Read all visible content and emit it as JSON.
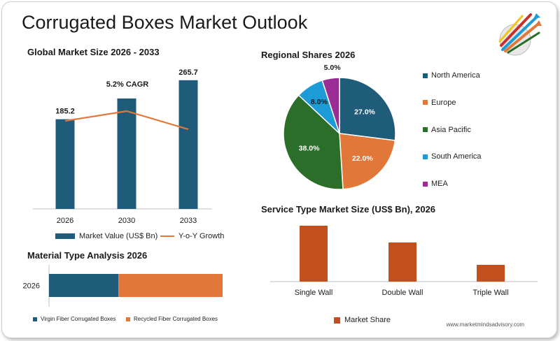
{
  "title": "Corrugated Boxes Market Outlook",
  "footer": "www.marketmindsadvisory.com",
  "logo_icon": "rising-arrows-icon",
  "colors": {
    "bar_blue": "#1f5c7a",
    "line_orange": "#e2773a",
    "service_bar": "#c24f1c",
    "north_america": "#1f5c7a",
    "europe": "#e2773a",
    "asia_pacific": "#2a6e2a",
    "south_america": "#1c9bd6",
    "mea": "#9b2c96"
  },
  "chart_data": [
    {
      "id": "global_market_size",
      "type": "bar",
      "title": "Global Market Size 2026 - 2033",
      "categories": [
        "2026",
        "2030",
        "2033"
      ],
      "series": [
        {
          "name": "Market Value (US$ Bn)",
          "values": [
            185.2,
            228.0,
            265.7
          ]
        },
        {
          "name": "Y-o-Y Growth",
          "type": "line",
          "values": [
            3.8,
            4.5,
            3.2
          ]
        }
      ],
      "data_labels": [
        "185.2",
        "",
        "265.7"
      ],
      "annotation": "5.2% CAGR",
      "ylim": [
        0,
        300
      ]
    },
    {
      "id": "regional_shares",
      "type": "pie",
      "title": "Regional Shares 2026",
      "labels": [
        "North America",
        "Europe",
        "Asia Pacific",
        "South America",
        "MEA"
      ],
      "values": [
        27.0,
        22.0,
        38.0,
        8.0,
        5.0
      ],
      "value_labels": [
        "27.0%",
        "22.0%",
        "38.0%",
        "8.0%",
        "5.0%"
      ],
      "legend_position": "right"
    },
    {
      "id": "material_type",
      "type": "bar",
      "orientation": "horizontal-stacked",
      "title": "Material Type Analysis 2026",
      "categories": [
        "2026"
      ],
      "series": [
        {
          "name": "Virgin Fiber Corrugated Boxes",
          "values": [
            40
          ]
        },
        {
          "name": "Recycled Fiber Corrugated Boxes",
          "values": [
            60
          ]
        }
      ],
      "legend_position": "bottom"
    },
    {
      "id": "service_type",
      "type": "bar",
      "title": "Service Type Market Size (US$ Bn), 2026",
      "categories": [
        "Single Wall",
        "Double Wall",
        "Triple Wall"
      ],
      "series": [
        {
          "name": "Market Share",
          "values": [
            100,
            70,
            30
          ]
        }
      ],
      "legend_position": "bottom"
    }
  ]
}
